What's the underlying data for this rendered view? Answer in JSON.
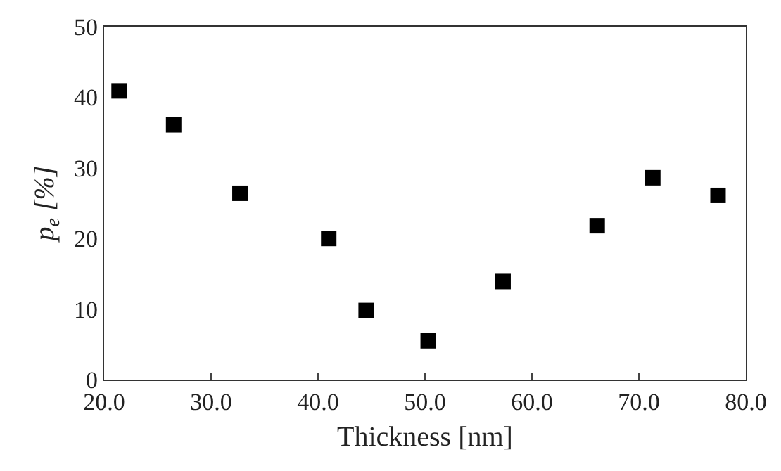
{
  "chart_data": {
    "type": "scatter",
    "xlabel": "Thickness [nm]",
    "ylabel": "p$_{e}$ [%]",
    "x": [
      21.4,
      26.5,
      32.7,
      41.0,
      44.5,
      50.3,
      57.3,
      66.1,
      71.3,
      77.4
    ],
    "series": [
      {
        "color": "#000000",
        "values": [
          40.9,
          36.1,
          26.4,
          20.0,
          9.8,
          5.5,
          13.9,
          21.8,
          28.6,
          26.1
        ]
      }
    ],
    "xlim": [
      20,
      80
    ],
    "xticks": [
      {
        "value": 20,
        "label": "20.0"
      },
      {
        "value": 30,
        "label": "30.0"
      },
      {
        "value": 40,
        "label": "40.0"
      },
      {
        "value": 50,
        "label": "50.0"
      },
      {
        "value": 60,
        "label": "60.0"
      },
      {
        "value": 70,
        "label": "70.0"
      },
      {
        "value": 80,
        "label": "80.0"
      }
    ],
    "ylim": [
      0,
      50
    ],
    "yticks": [
      0,
      10,
      20,
      30,
      40,
      50
    ],
    "grid": false,
    "legend": false,
    "marker": "square"
  }
}
